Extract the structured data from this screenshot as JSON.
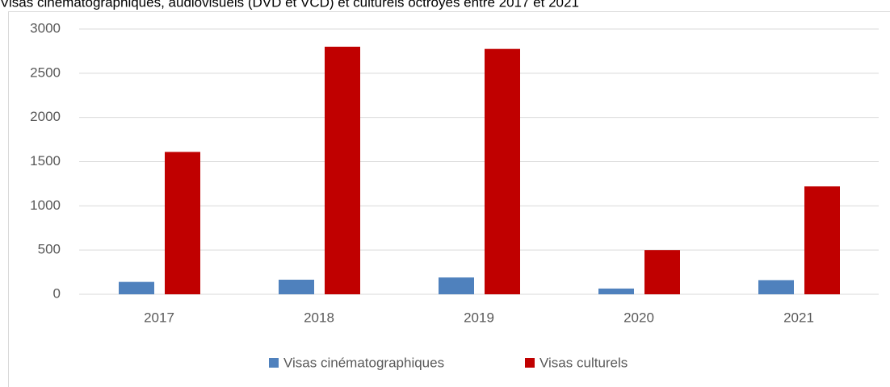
{
  "chart_data": {
    "type": "bar",
    "title": "Visas cinématographiques, audiovisuels (DVD et VCD) et culturels octroyés entre 2017 et 2021",
    "categories": [
      "2017",
      "2018",
      "2019",
      "2020",
      "2021"
    ],
    "series": [
      {
        "name": "Visas cinématographiques",
        "color": "#4f81bd",
        "values": [
          140,
          165,
          190,
          65,
          160
        ]
      },
      {
        "name": "Visas culturels",
        "color": "#c00000",
        "values": [
          1610,
          2800,
          2775,
          500,
          1220
        ]
      }
    ],
    "ylim": [
      0,
      3000
    ],
    "yticks": [
      0,
      500,
      1000,
      1500,
      2000,
      2500,
      3000
    ],
    "grid": true,
    "legend": "bottom"
  }
}
